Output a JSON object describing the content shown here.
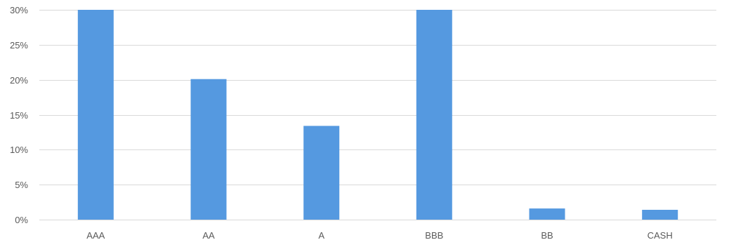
{
  "chart_data": {
    "type": "bar",
    "title": "",
    "xlabel": "",
    "ylabel": "",
    "categories": [
      "AAA",
      "AA",
      "A",
      "BBB",
      "BB",
      "CASH"
    ],
    "values": [
      30.0,
      20.1,
      13.4,
      30.0,
      1.6,
      1.4
    ],
    "ylim": [
      0,
      30
    ],
    "yticks": [
      0,
      5,
      10,
      15,
      20,
      25,
      30
    ],
    "ytick_labels": [
      "0%",
      "5%",
      "10%",
      "15%",
      "20%",
      "25%",
      "30%"
    ],
    "grid": true,
    "legend": "none",
    "bar_color": "#5599E0",
    "grid_color": "#D9D9D9",
    "text_color": "#595959"
  }
}
